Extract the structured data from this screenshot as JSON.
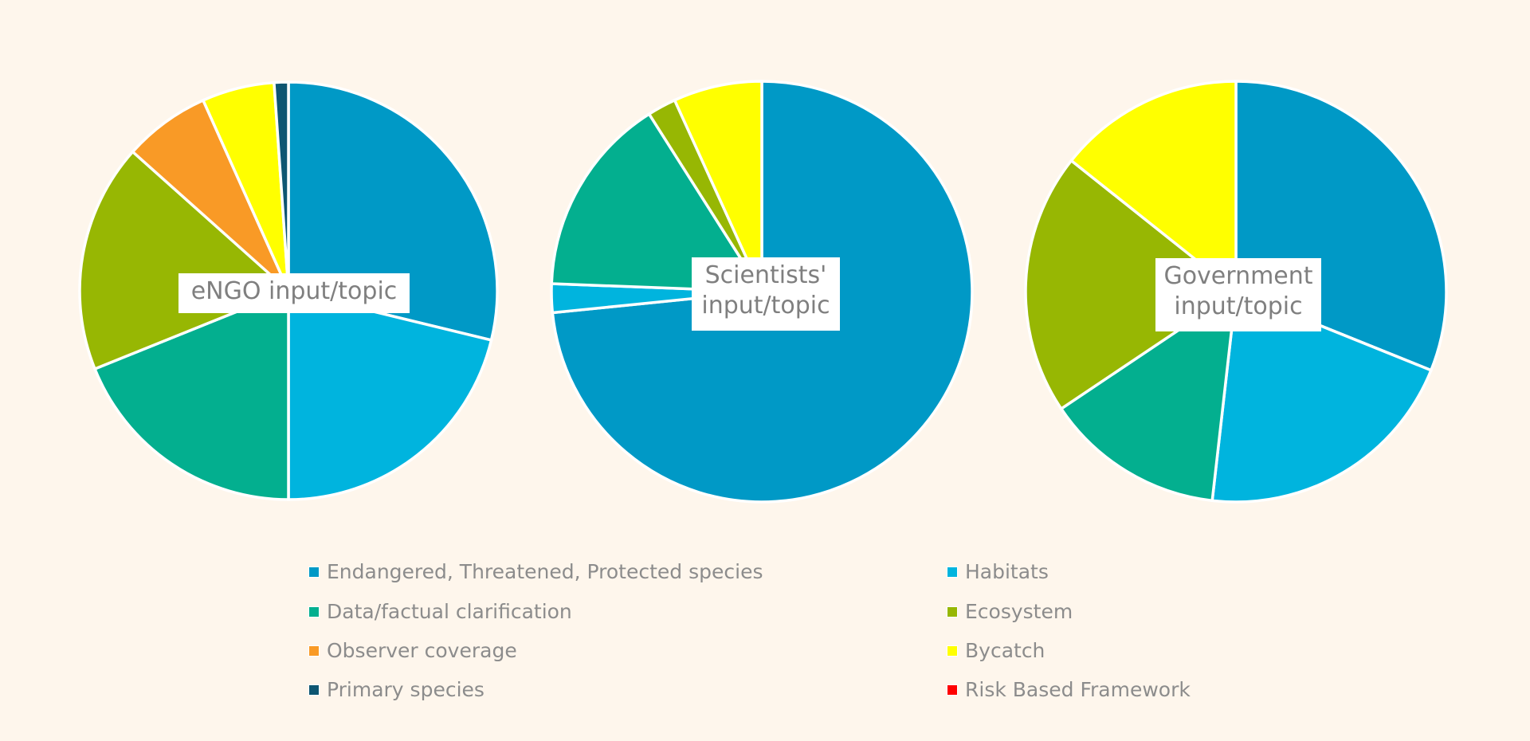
{
  "chart_data": [
    {
      "type": "pie",
      "title": "eNGO input/topic",
      "categories": [
        "Endangered, Threatened, Protected species",
        "Habitats",
        "Data/factual clarification",
        "Ecosystem",
        "Observer coverage",
        "Bycatch",
        "Primary species"
      ],
      "values": [
        28.8,
        21.2,
        18.9,
        17.7,
        6.7,
        5.6,
        1.1
      ]
    },
    {
      "type": "pie",
      "title": "Scientists' input/topic",
      "categories": [
        "Endangered, Threatened, Protected species",
        "Habitats",
        "Data/factual clarification",
        "Ecosystem",
        "Bycatch"
      ],
      "values": [
        73.4,
        2.2,
        15.4,
        2.2,
        6.8
      ]
    },
    {
      "type": "pie",
      "title": "Government input/topic",
      "categories": [
        "Endangered, Threatened, Protected species",
        "Habitats",
        "Data/factual clarification",
        "Ecosystem",
        "Bycatch"
      ],
      "values": [
        31.1,
        20.7,
        13.8,
        20.1,
        14.3
      ]
    }
  ],
  "legend": [
    {
      "label": "Endangered, Threatened, Protected species",
      "color": "#0099c6"
    },
    {
      "label": "Habitats",
      "color": "#00b4de"
    },
    {
      "label": "Data/factual clarification",
      "color": "#03af8f"
    },
    {
      "label": "Ecosystem",
      "color": "#97b703"
    },
    {
      "label": "Observer coverage",
      "color": "#f99a26"
    },
    {
      "label": "Bycatch",
      "color": "#ffff00"
    },
    {
      "label": "Primary species",
      "color": "#0e5672"
    },
    {
      "label": "Risk Based Framework",
      "color": "#ff0000"
    }
  ]
}
